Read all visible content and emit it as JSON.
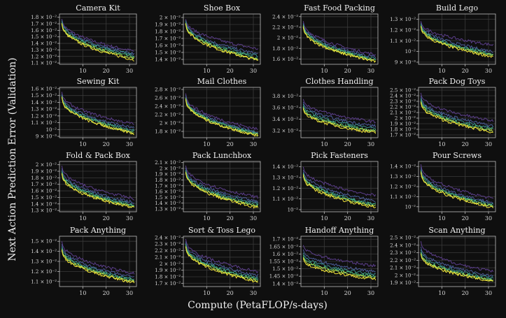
{
  "figure": {
    "ylabel": "Next Action Prediction Error (Validation)",
    "xlabel": "Compute (PetaFLOP/s-days)",
    "background": "#0f0f0f",
    "series_colors": [
      "#5b3e8a",
      "#4b5a96",
      "#3b8a8c",
      "#4cb87a",
      "#b3d948",
      "#f2e33a"
    ]
  },
  "chart_data": [
    {
      "type": "line",
      "title": "Camera Kit",
      "xlabel": "",
      "ylabel": "",
      "xlim": [
        0,
        33
      ],
      "ylim": [
        0.0108,
        0.0185
      ],
      "xticks": [
        10,
        20,
        30
      ],
      "xtick_labels": [
        "10",
        "20",
        "30"
      ],
      "yticks": [
        0.011,
        0.012,
        0.013,
        0.014,
        0.015,
        0.016,
        0.017,
        0.018
      ],
      "ytick_labels": [
        "1.1 × 10⁻²",
        "1.2 × 10⁻²",
        "1.3 × 10⁻²",
        "1.4 × 10⁻²",
        "1.5 × 10⁻²",
        "1.6 × 10⁻²",
        "1.7 × 10⁻²",
        "1.8 × 10⁻²"
      ],
      "series_start": [
        0.0178,
        0.0176,
        0.0174,
        0.0172,
        0.0171,
        0.017
      ],
      "series_end": [
        0.0128,
        0.0124,
        0.0122,
        0.0119,
        0.0117,
        0.0115
      ]
    },
    {
      "type": "line",
      "title": "Shoe Box",
      "xlabel": "",
      "ylabel": "",
      "xlim": [
        0,
        33
      ],
      "ylim": [
        0.0133,
        0.0205
      ],
      "xticks": [
        10,
        20,
        30
      ],
      "xtick_labels": [
        "10",
        "20",
        "30"
      ],
      "yticks": [
        0.014,
        0.015,
        0.016,
        0.017,
        0.018,
        0.019,
        0.02
      ],
      "ytick_labels": [
        "1.4 × 10⁻²",
        "1.5 × 10⁻²",
        "1.6 × 10⁻²",
        "1.7 × 10⁻²",
        "1.8 × 10⁻²",
        "1.9 × 10⁻²",
        "2 × 10⁻²"
      ],
      "series_start": [
        0.0198,
        0.0196,
        0.0195,
        0.0193,
        0.0192,
        0.0191
      ],
      "series_end": [
        0.0155,
        0.0148,
        0.0145,
        0.0142,
        0.014,
        0.0139
      ]
    },
    {
      "type": "line",
      "title": "Fast Food Packing",
      "xlabel": "",
      "ylabel": "",
      "xlim": [
        0,
        33
      ],
      "ylim": [
        0.015,
        0.0245
      ],
      "xticks": [
        10,
        20,
        30
      ],
      "xtick_labels": [
        "10",
        "20",
        "30"
      ],
      "yticks": [
        0.016,
        0.018,
        0.02,
        0.022,
        0.024
      ],
      "ytick_labels": [
        "1.6 × 10⁻²",
        "1.8 × 10⁻²",
        "2 × 10⁻²",
        "2.2 × 10⁻²",
        "2.4 × 10⁻²"
      ],
      "series_start": [
        0.0232,
        0.0228,
        0.0226,
        0.0224,
        0.0222,
        0.022
      ],
      "series_end": [
        0.0168,
        0.0163,
        0.016,
        0.0158,
        0.0156,
        0.0155
      ]
    },
    {
      "type": "line",
      "title": "Build Lego",
      "xlabel": "",
      "ylabel": "",
      "xlim": [
        0,
        33
      ],
      "ylim": [
        0.0088,
        0.0135
      ],
      "xticks": [
        10,
        20,
        30
      ],
      "xtick_labels": [
        "10",
        "20",
        "30"
      ],
      "yticks": [
        0.009,
        0.01,
        0.011,
        0.012,
        0.013
      ],
      "ytick_labels": [
        "9 × 10⁻³",
        "10⁻²",
        "1.1 × 10⁻²",
        "1.2 × 10⁻²",
        "1.3 × 10⁻²"
      ],
      "series_start": [
        0.0128,
        0.0127,
        0.0126,
        0.0125,
        0.0124,
        0.0123
      ],
      "series_end": [
        0.0106,
        0.01,
        0.0098,
        0.0097,
        0.0096,
        0.0095
      ]
    },
    {
      "type": "line",
      "title": "Sewing Kit",
      "xlabel": "",
      "ylabel": "",
      "xlim": [
        0,
        33
      ],
      "ylim": [
        0.0088,
        0.0162
      ],
      "xticks": [
        10,
        20,
        30
      ],
      "xtick_labels": [
        "10",
        "20",
        "30"
      ],
      "yticks": [
        0.009,
        0.01,
        0.011,
        0.012,
        0.013,
        0.014,
        0.015,
        0.016
      ],
      "ytick_labels": [
        "9 × 10⁻³",
        "10⁻²",
        "1.1 × 10⁻²",
        "1.2 × 10⁻²",
        "1.3 × 10⁻²",
        "1.4 × 10⁻²",
        "1.5 × 10⁻²",
        "1.6 × 10⁻²"
      ],
      "series_start": [
        0.0155,
        0.0152,
        0.015,
        0.0149,
        0.0148,
        0.0147
      ],
      "series_end": [
        0.0108,
        0.0102,
        0.0099,
        0.0097,
        0.0095,
        0.0094
      ]
    },
    {
      "type": "line",
      "title": "Mail Clothes",
      "xlabel": "",
      "ylabel": "",
      "xlim": [
        0,
        33
      ],
      "ylim": [
        0.0165,
        0.0285
      ],
      "xticks": [
        10,
        20,
        30
      ],
      "xtick_labels": [
        "10",
        "20",
        "30"
      ],
      "yticks": [
        0.018,
        0.02,
        0.022,
        0.024,
        0.026,
        0.028
      ],
      "ytick_labels": [
        "1.8 × 10⁻²",
        "2 × 10⁻²",
        "2.2 × 10⁻²",
        "2.4 × 10⁻²",
        "2.6 × 10⁻²",
        "2.8 × 10⁻²"
      ],
      "series_start": [
        0.027,
        0.0266,
        0.0262,
        0.026,
        0.0258,
        0.0256
      ],
      "series_end": [
        0.0185,
        0.0178,
        0.0175,
        0.0173,
        0.0171,
        0.017
      ]
    },
    {
      "type": "line",
      "title": "Clothes Handling",
      "xlabel": "",
      "ylabel": "",
      "xlim": [
        0,
        33
      ],
      "ylim": [
        0.0308,
        0.0395
      ],
      "xticks": [
        10,
        20,
        30
      ],
      "xtick_labels": [
        "10",
        "20",
        "30"
      ],
      "yticks": [
        0.032,
        0.034,
        0.036,
        0.038
      ],
      "ytick_labels": [
        "3.2 × 10⁻²",
        "3.4 × 10⁻²",
        "3.6 × 10⁻²",
        "3.8 × 10⁻²"
      ],
      "series_start": [
        0.0375,
        0.037,
        0.0366,
        0.0362,
        0.036,
        0.0358
      ],
      "series_end": [
        0.0335,
        0.0328,
        0.0324,
        0.032,
        0.0318,
        0.0316
      ]
    },
    {
      "type": "line",
      "title": "Pack Dog Toys",
      "xlabel": "",
      "ylabel": "",
      "xlim": [
        0,
        33
      ],
      "ylim": [
        0.0165,
        0.0255
      ],
      "xticks": [
        10,
        20,
        30
      ],
      "xtick_labels": [
        "10",
        "20",
        "30"
      ],
      "yticks": [
        0.017,
        0.018,
        0.019,
        0.02,
        0.021,
        0.022,
        0.023,
        0.024,
        0.025
      ],
      "ytick_labels": [
        "1.7 × 10⁻²",
        "1.8 × 10⁻²",
        "1.9 × 10⁻²",
        "2 × 10⁻²",
        "2.1 × 10⁻²",
        "2.2 × 10⁻²",
        "2.3 × 10⁻²",
        "2.4 × 10⁻²",
        "2.5 × 10⁻²"
      ],
      "series_start": [
        0.0245,
        0.024,
        0.0236,
        0.0233,
        0.023,
        0.0228
      ],
      "series_end": [
        0.0195,
        0.0186,
        0.0182,
        0.0179,
        0.0177,
        0.0175
      ]
    },
    {
      "type": "line",
      "title": "Fold & Pack Box",
      "xlabel": "",
      "ylabel": "",
      "xlim": [
        0,
        33
      ],
      "ylim": [
        0.0128,
        0.0205
      ],
      "xticks": [
        10,
        20,
        30
      ],
      "xtick_labels": [
        "10",
        "20",
        "30"
      ],
      "yticks": [
        0.013,
        0.014,
        0.015,
        0.016,
        0.017,
        0.018,
        0.019,
        0.02
      ],
      "ytick_labels": [
        "1.3 × 10⁻²",
        "1.4 × 10⁻²",
        "1.5 × 10⁻²",
        "1.6 × 10⁻²",
        "1.7 × 10⁻²",
        "1.8 × 10⁻²",
        "1.9 × 10⁻²",
        "2 × 10⁻²"
      ],
      "series_start": [
        0.0198,
        0.0194,
        0.0191,
        0.0189,
        0.0187,
        0.0186
      ],
      "series_end": [
        0.0148,
        0.0142,
        0.0139,
        0.0137,
        0.0135,
        0.0134
      ]
    },
    {
      "type": "line",
      "title": "Pack Lunchbox",
      "xlabel": "",
      "ylabel": "",
      "xlim": [
        0,
        33
      ],
      "ylim": [
        0.0125,
        0.0212
      ],
      "xticks": [
        10,
        20,
        30
      ],
      "xtick_labels": [
        "10",
        "20",
        "30"
      ],
      "yticks": [
        0.013,
        0.014,
        0.015,
        0.016,
        0.017,
        0.018,
        0.019,
        0.02,
        0.021
      ],
      "ytick_labels": [
        "1.3 × 10⁻²",
        "1.4 × 10⁻²",
        "1.5 × 10⁻²",
        "1.6 × 10⁻²",
        "1.7 × 10⁻²",
        "1.8 × 10⁻²",
        "1.9 × 10⁻²",
        "2 × 10⁻²",
        "2.1 × 10⁻²"
      ],
      "series_start": [
        0.0205,
        0.0201,
        0.0198,
        0.0196,
        0.0194,
        0.0193
      ],
      "series_end": [
        0.015,
        0.0142,
        0.0139,
        0.0136,
        0.0134,
        0.0132
      ]
    },
    {
      "type": "line",
      "title": "Pick Fasteners",
      "xlabel": "",
      "ylabel": "",
      "xlim": [
        0,
        33
      ],
      "ylim": [
        0.0098,
        0.0145
      ],
      "xticks": [
        10,
        20,
        30
      ],
      "xtick_labels": [
        "10",
        "20",
        "30"
      ],
      "yticks": [
        0.01,
        0.011,
        0.012,
        0.013,
        0.014
      ],
      "ytick_labels": [
        "10⁻²",
        "1.1 × 10⁻²",
        "1.2 × 10⁻²",
        "1.3 × 10⁻²",
        "1.4 × 10⁻²"
      ],
      "series_start": [
        0.014,
        0.0137,
        0.0135,
        0.0134,
        0.0133,
        0.0132
      ],
      "series_end": [
        0.0113,
        0.0108,
        0.0105,
        0.0104,
        0.0103,
        0.0102
      ]
    },
    {
      "type": "line",
      "title": "Pour Screws",
      "xlabel": "",
      "ylabel": "",
      "xlim": [
        0,
        33
      ],
      "ylim": [
        0.0095,
        0.0145
      ],
      "xticks": [
        10,
        20,
        30
      ],
      "xtick_labels": [
        "10",
        "20",
        "30"
      ],
      "yticks": [
        0.01,
        0.011,
        0.012,
        0.013,
        0.014
      ],
      "ytick_labels": [
        "10⁻²",
        "1.1 × 10⁻²",
        "1.2 × 10⁻²",
        "1.3 × 10⁻²",
        "1.4 × 10⁻²"
      ],
      "series_start": [
        0.0142,
        0.0139,
        0.0137,
        0.0136,
        0.0135,
        0.0134
      ],
      "series_end": [
        0.0108,
        0.0104,
        0.0102,
        0.0101,
        0.01,
        0.0099
      ]
    },
    {
      "type": "line",
      "title": "Pack Anything",
      "xlabel": "",
      "ylabel": "",
      "xlim": [
        0,
        33
      ],
      "ylim": [
        0.0105,
        0.0155
      ],
      "xticks": [
        10,
        20,
        30
      ],
      "xtick_labels": [
        "10",
        "20",
        "30"
      ],
      "yticks": [
        0.011,
        0.012,
        0.013,
        0.014,
        0.015
      ],
      "ytick_labels": [
        "1.1 × 10⁻²",
        "1.2 × 10⁻²",
        "1.3 × 10⁻²",
        "1.4 × 10⁻²",
        "1.5 × 10⁻²"
      ],
      "series_start": [
        0.015,
        0.0147,
        0.0145,
        0.0143,
        0.0142,
        0.0141
      ],
      "series_end": [
        0.0118,
        0.0114,
        0.0112,
        0.0111,
        0.011,
        0.0109
      ]
    },
    {
      "type": "line",
      "title": "Sort & Toss Lego",
      "xlabel": "",
      "ylabel": "",
      "xlim": [
        0,
        33
      ],
      "ylim": [
        0.0165,
        0.0242
      ],
      "xticks": [
        10,
        20,
        30
      ],
      "xtick_labels": [
        "10",
        "20",
        "30"
      ],
      "yticks": [
        0.017,
        0.018,
        0.019,
        0.02,
        0.021,
        0.022,
        0.023,
        0.024
      ],
      "ytick_labels": [
        "1.7 × 10⁻²",
        "1.8 × 10⁻²",
        "1.9 × 10⁻²",
        "2 × 10⁻²",
        "2.1 × 10⁻²",
        "2.2 × 10⁻²",
        "2.3 × 10⁻²",
        "2.4 × 10⁻²"
      ],
      "series_start": [
        0.0238,
        0.0234,
        0.0231,
        0.0229,
        0.0227,
        0.0226
      ],
      "series_end": [
        0.0188,
        0.0182,
        0.0178,
        0.0176,
        0.0174,
        0.0172
      ]
    },
    {
      "type": "line",
      "title": "Handoff Anything",
      "xlabel": "",
      "ylabel": "",
      "xlim": [
        0,
        33
      ],
      "ylim": [
        0.0138,
        0.0172
      ],
      "xticks": [
        10,
        20,
        30
      ],
      "xtick_labels": [
        "10",
        "20",
        "30"
      ],
      "yticks": [
        0.014,
        0.0145,
        0.015,
        0.0155,
        0.016,
        0.0165,
        0.017
      ],
      "ytick_labels": [
        "1.4 × 10⁻²",
        "1.45 × 10⁻²",
        "1.5 × 10⁻²",
        "1.55 × 10⁻²",
        "1.6 × 10⁻²",
        "1.65 × 10⁻²",
        "1.7 × 10⁻²"
      ],
      "series_start": [
        0.0166,
        0.0163,
        0.0161,
        0.0159,
        0.0158,
        0.0157
      ],
      "series_end": [
        0.0152,
        0.0148,
        0.0146,
        0.0145,
        0.0144,
        0.0143
      ]
    },
    {
      "type": "line",
      "title": "Scan Anything",
      "xlabel": "",
      "ylabel": "",
      "xlim": [
        0,
        33
      ],
      "ylim": [
        0.0185,
        0.0252
      ],
      "xticks": [
        10,
        20,
        30
      ],
      "xtick_labels": [
        "10",
        "20",
        "30"
      ],
      "yticks": [
        0.019,
        0.02,
        0.021,
        0.022,
        0.023,
        0.024,
        0.025
      ],
      "ytick_labels": [
        "1.9 × 10⁻²",
        "2 × 10⁻²",
        "2.1 × 10⁻²",
        "2.2 × 10⁻²",
        "2.3 × 10⁻²",
        "2.4 × 10⁻²",
        "2.5 × 10⁻²"
      ],
      "series_start": [
        0.0245,
        0.0238,
        0.0234,
        0.0231,
        0.0229,
        0.0228
      ],
      "series_end": [
        0.0205,
        0.0199,
        0.0196,
        0.0194,
        0.0193,
        0.0192
      ]
    }
  ]
}
